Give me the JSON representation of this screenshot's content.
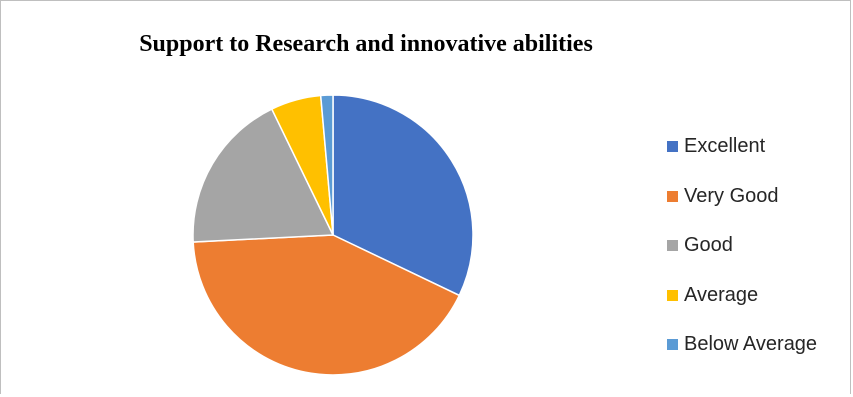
{
  "chart_data": {
    "type": "pie",
    "title": "Support to Research and innovative abilities",
    "categories": [
      "Excellent",
      "Very Good",
      "Good",
      "Average",
      "Below Average"
    ],
    "values": [
      32.1,
      42.1,
      18.6,
      5.8,
      1.4
    ],
    "unit": "percent",
    "colors": [
      "#4472c4",
      "#ed7d31",
      "#a5a5a5",
      "#ffc000",
      "#5b9bd5"
    ],
    "legend_position": "right",
    "data_labels": false
  }
}
